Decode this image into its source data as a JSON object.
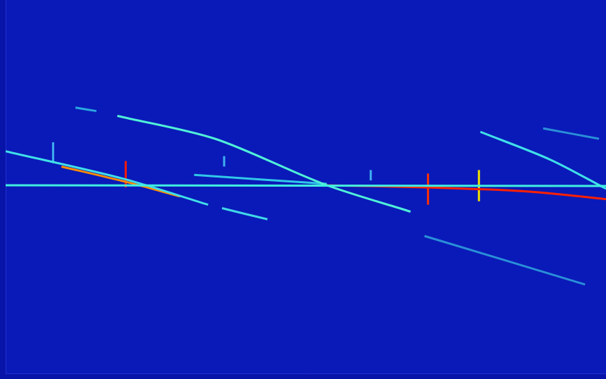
{
  "chart_data": {
    "type": "line",
    "xlim": [
      0,
      860
    ],
    "xticks": [],
    "ylim": [
      0,
      538
    ],
    "yticks": [],
    "grid": false,
    "tick_labels": false,
    "series": [
      {
        "color": "#40f0e0",
        "x": [
          0,
          860
        ],
        "values": [
          271,
          270
        ]
      },
      {
        "color": "#40e0e8",
        "x": [
          0,
          170,
          290
        ],
        "values": [
          320,
          280,
          243
        ]
      },
      {
        "color": "#ff8c00",
        "x": [
          80,
          172,
          250
        ],
        "values": [
          298,
          276,
          255
        ]
      },
      {
        "color": "#50f0d8",
        "x": [
          160,
          300,
          455,
          580
        ],
        "values": [
          371,
          338,
          273,
          233
        ]
      },
      {
        "color": "#2aa8e0",
        "x": [
          100,
          130
        ],
        "values": [
          383,
          378
        ]
      },
      {
        "color": "#30c8e8",
        "x": [
          270,
          460
        ],
        "values": [
          286,
          273
        ]
      },
      {
        "color": "#40d8e8",
        "x": [
          310,
          375
        ],
        "values": [
          238,
          222
        ]
      },
      {
        "color": "#2a90d8",
        "x": [
          600,
          830
        ],
        "values": [
          198,
          128
        ]
      },
      {
        "color": "#2a90d8",
        "x": [
          770,
          850
        ],
        "values": [
          353,
          338
        ]
      },
      {
        "color": "#40e0e8",
        "x": [
          680,
          780,
          860
        ],
        "values": [
          348,
          308,
          266
        ]
      },
      {
        "color": "#ff2000",
        "x": [
          455,
          600,
          750,
          860
        ],
        "values": [
          271,
          268,
          262,
          251
        ]
      },
      {
        "color": "#ff1a00",
        "x": [
          172,
          172
        ],
        "values": [
          306,
          268
        ]
      },
      {
        "color": "#ff3000",
        "x": [
          605,
          605
        ],
        "values": [
          288,
          243
        ]
      },
      {
        "color": "#f0e000",
        "x": [
          678,
          678
        ],
        "values": [
          293,
          248
        ]
      },
      {
        "color": "#40b0f0",
        "x": [
          68,
          68
        ],
        "values": [
          333,
          303
        ]
      },
      {
        "color": "#40b0f0",
        "x": [
          313,
          313
        ],
        "values": [
          313,
          298
        ]
      },
      {
        "color": "#40b0f0",
        "x": [
          523,
          523
        ],
        "values": [
          293,
          278
        ]
      }
    ]
  }
}
